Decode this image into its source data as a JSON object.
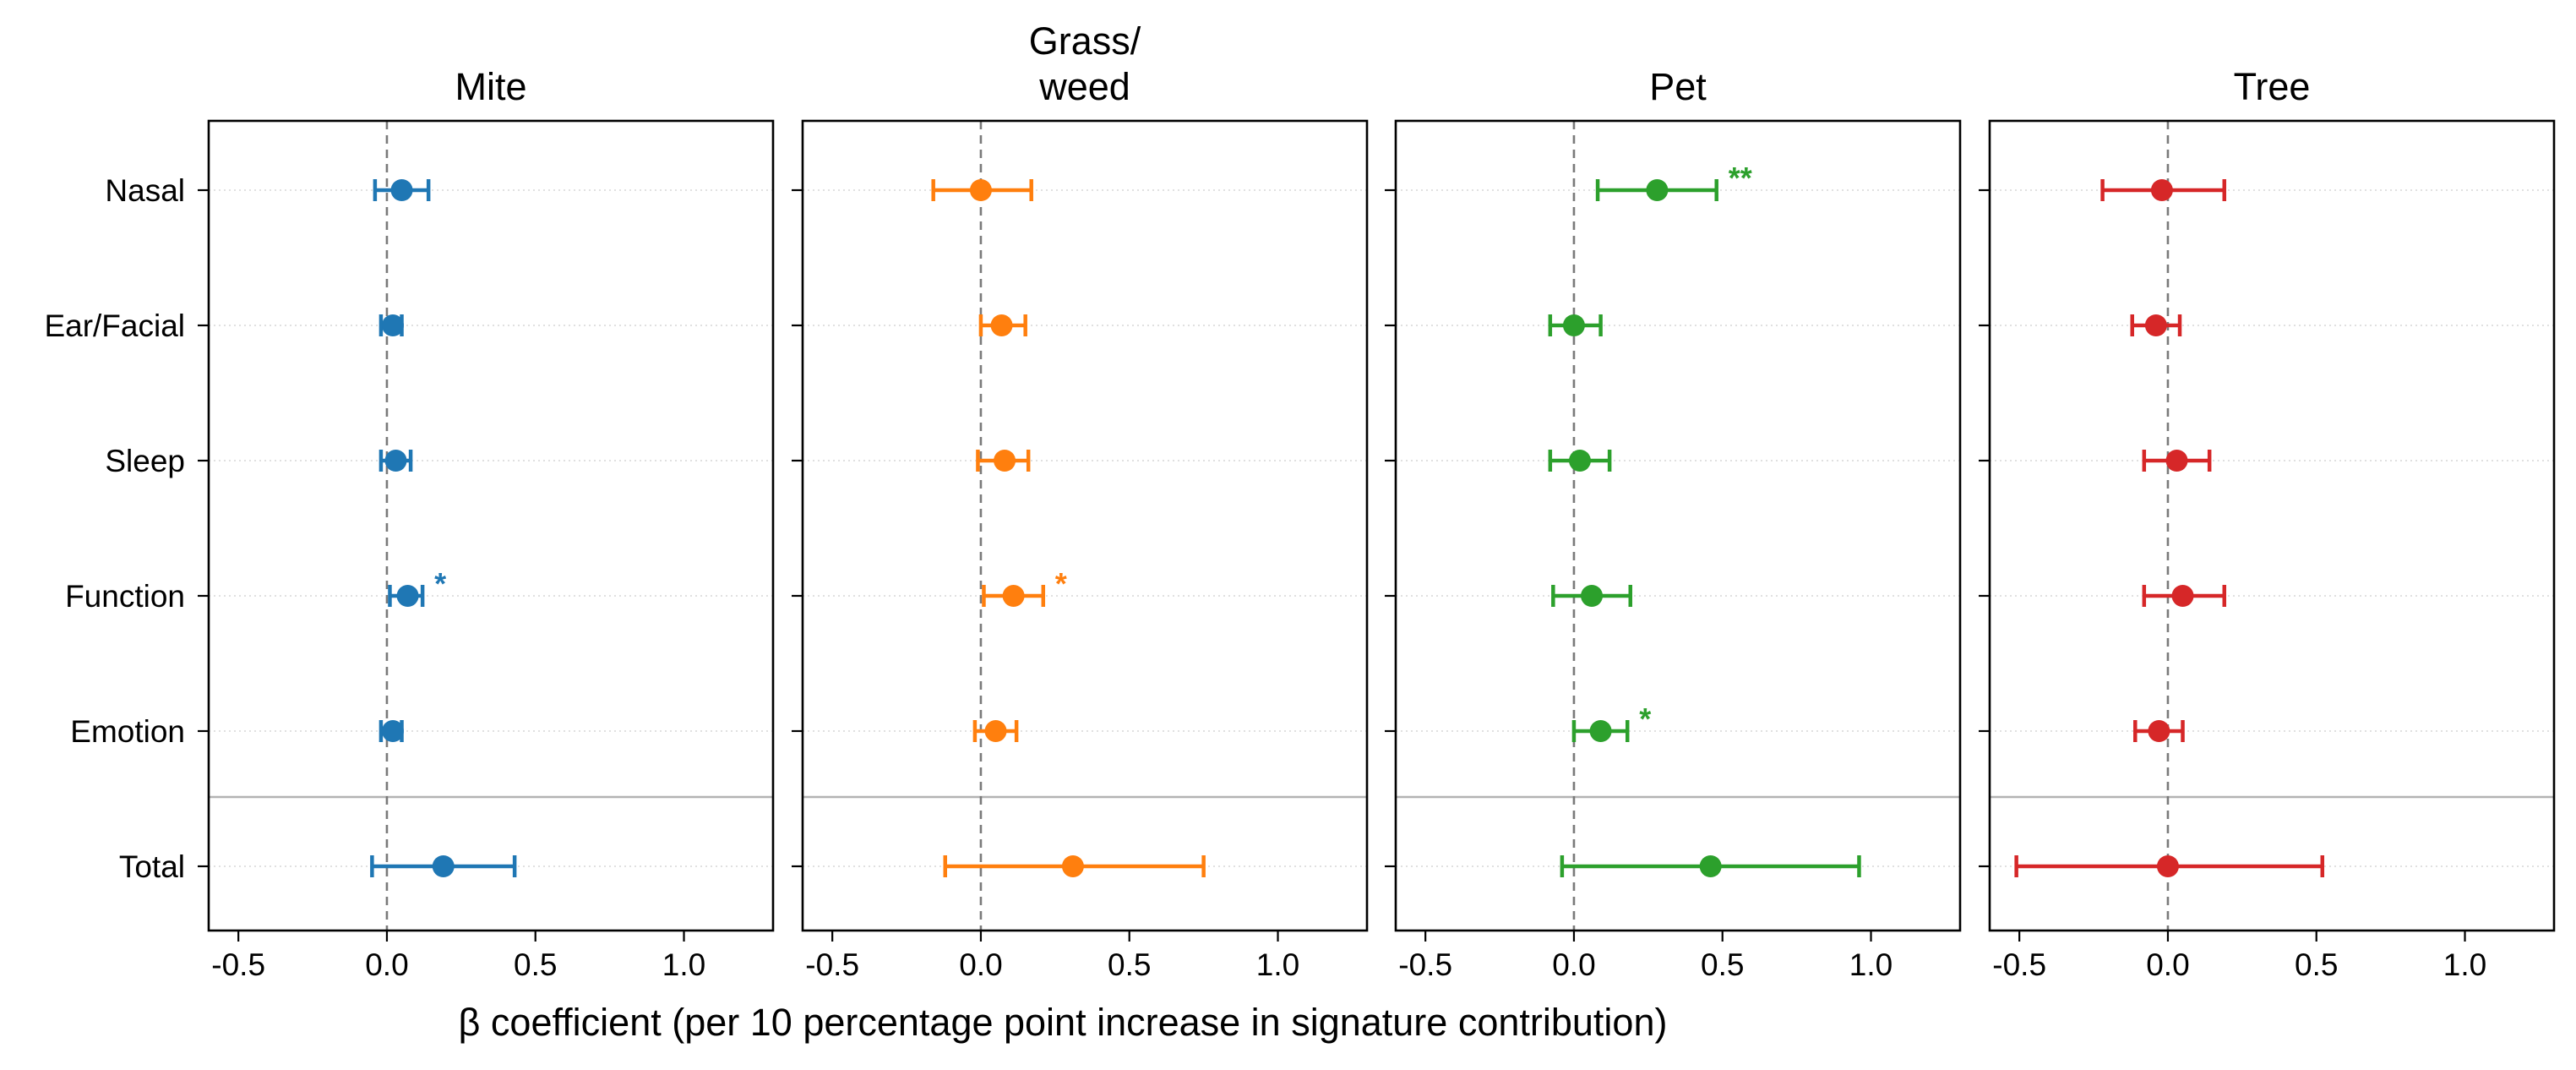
{
  "chart_data": {
    "type": "forest",
    "xlabel": "β coefficient (per 10 percentage point increase in signature contribution)",
    "xlim": [
      -0.6,
      1.3
    ],
    "xticks": [
      -0.5,
      0.0,
      0.5,
      1.0
    ],
    "xtick_labels": [
      "-0.5",
      "0.0",
      "0.5",
      "1.0"
    ],
    "reference_line": 0,
    "categories": [
      "Nasal",
      "Ear/Facial",
      "Sleep",
      "Function",
      "Emotion",
      "Total"
    ],
    "separator_before": "Total",
    "panels": [
      {
        "title": "Mite",
        "color": "#1f77b4",
        "points": [
          {
            "category": "Nasal",
            "estimate": 0.05,
            "ci_low": -0.04,
            "ci_high": 0.14,
            "sig": ""
          },
          {
            "category": "Ear/Facial",
            "estimate": 0.02,
            "ci_low": -0.02,
            "ci_high": 0.05,
            "sig": ""
          },
          {
            "category": "Sleep",
            "estimate": 0.03,
            "ci_low": -0.02,
            "ci_high": 0.08,
            "sig": ""
          },
          {
            "category": "Function",
            "estimate": 0.07,
            "ci_low": 0.01,
            "ci_high": 0.12,
            "sig": "*"
          },
          {
            "category": "Emotion",
            "estimate": 0.02,
            "ci_low": -0.02,
            "ci_high": 0.05,
            "sig": ""
          },
          {
            "category": "Total",
            "estimate": 0.19,
            "ci_low": -0.05,
            "ci_high": 0.43,
            "sig": ""
          }
        ]
      },
      {
        "title": "Grass/\nweed",
        "color": "#ff7f0e",
        "points": [
          {
            "category": "Nasal",
            "estimate": 0.0,
            "ci_low": -0.16,
            "ci_high": 0.17,
            "sig": ""
          },
          {
            "category": "Ear/Facial",
            "estimate": 0.07,
            "ci_low": 0.0,
            "ci_high": 0.15,
            "sig": ""
          },
          {
            "category": "Sleep",
            "estimate": 0.08,
            "ci_low": -0.01,
            "ci_high": 0.16,
            "sig": ""
          },
          {
            "category": "Function",
            "estimate": 0.11,
            "ci_low": 0.01,
            "ci_high": 0.21,
            "sig": "*"
          },
          {
            "category": "Emotion",
            "estimate": 0.05,
            "ci_low": -0.02,
            "ci_high": 0.12,
            "sig": ""
          },
          {
            "category": "Total",
            "estimate": 0.31,
            "ci_low": -0.12,
            "ci_high": 0.75,
            "sig": ""
          }
        ]
      },
      {
        "title": "Pet",
        "color": "#2ca02c",
        "points": [
          {
            "category": "Nasal",
            "estimate": 0.28,
            "ci_low": 0.08,
            "ci_high": 0.48,
            "sig": "**"
          },
          {
            "category": "Ear/Facial",
            "estimate": 0.0,
            "ci_low": -0.08,
            "ci_high": 0.09,
            "sig": ""
          },
          {
            "category": "Sleep",
            "estimate": 0.02,
            "ci_low": -0.08,
            "ci_high": 0.12,
            "sig": ""
          },
          {
            "category": "Function",
            "estimate": 0.06,
            "ci_low": -0.07,
            "ci_high": 0.19,
            "sig": ""
          },
          {
            "category": "Emotion",
            "estimate": 0.09,
            "ci_low": 0.0,
            "ci_high": 0.18,
            "sig": "*"
          },
          {
            "category": "Total",
            "estimate": 0.46,
            "ci_low": -0.04,
            "ci_high": 0.96,
            "sig": ""
          }
        ]
      },
      {
        "title": "Tree",
        "color": "#d62728",
        "points": [
          {
            "category": "Nasal",
            "estimate": -0.02,
            "ci_low": -0.22,
            "ci_high": 0.19,
            "sig": ""
          },
          {
            "category": "Ear/Facial",
            "estimate": -0.04,
            "ci_low": -0.12,
            "ci_high": 0.04,
            "sig": ""
          },
          {
            "category": "Sleep",
            "estimate": 0.03,
            "ci_low": -0.08,
            "ci_high": 0.14,
            "sig": ""
          },
          {
            "category": "Function",
            "estimate": 0.05,
            "ci_low": -0.08,
            "ci_high": 0.19,
            "sig": ""
          },
          {
            "category": "Emotion",
            "estimate": -0.03,
            "ci_low": -0.11,
            "ci_high": 0.05,
            "sig": ""
          },
          {
            "category": "Total",
            "estimate": 0.0,
            "ci_low": -0.51,
            "ci_high": 0.52,
            "sig": ""
          }
        ]
      }
    ]
  }
}
